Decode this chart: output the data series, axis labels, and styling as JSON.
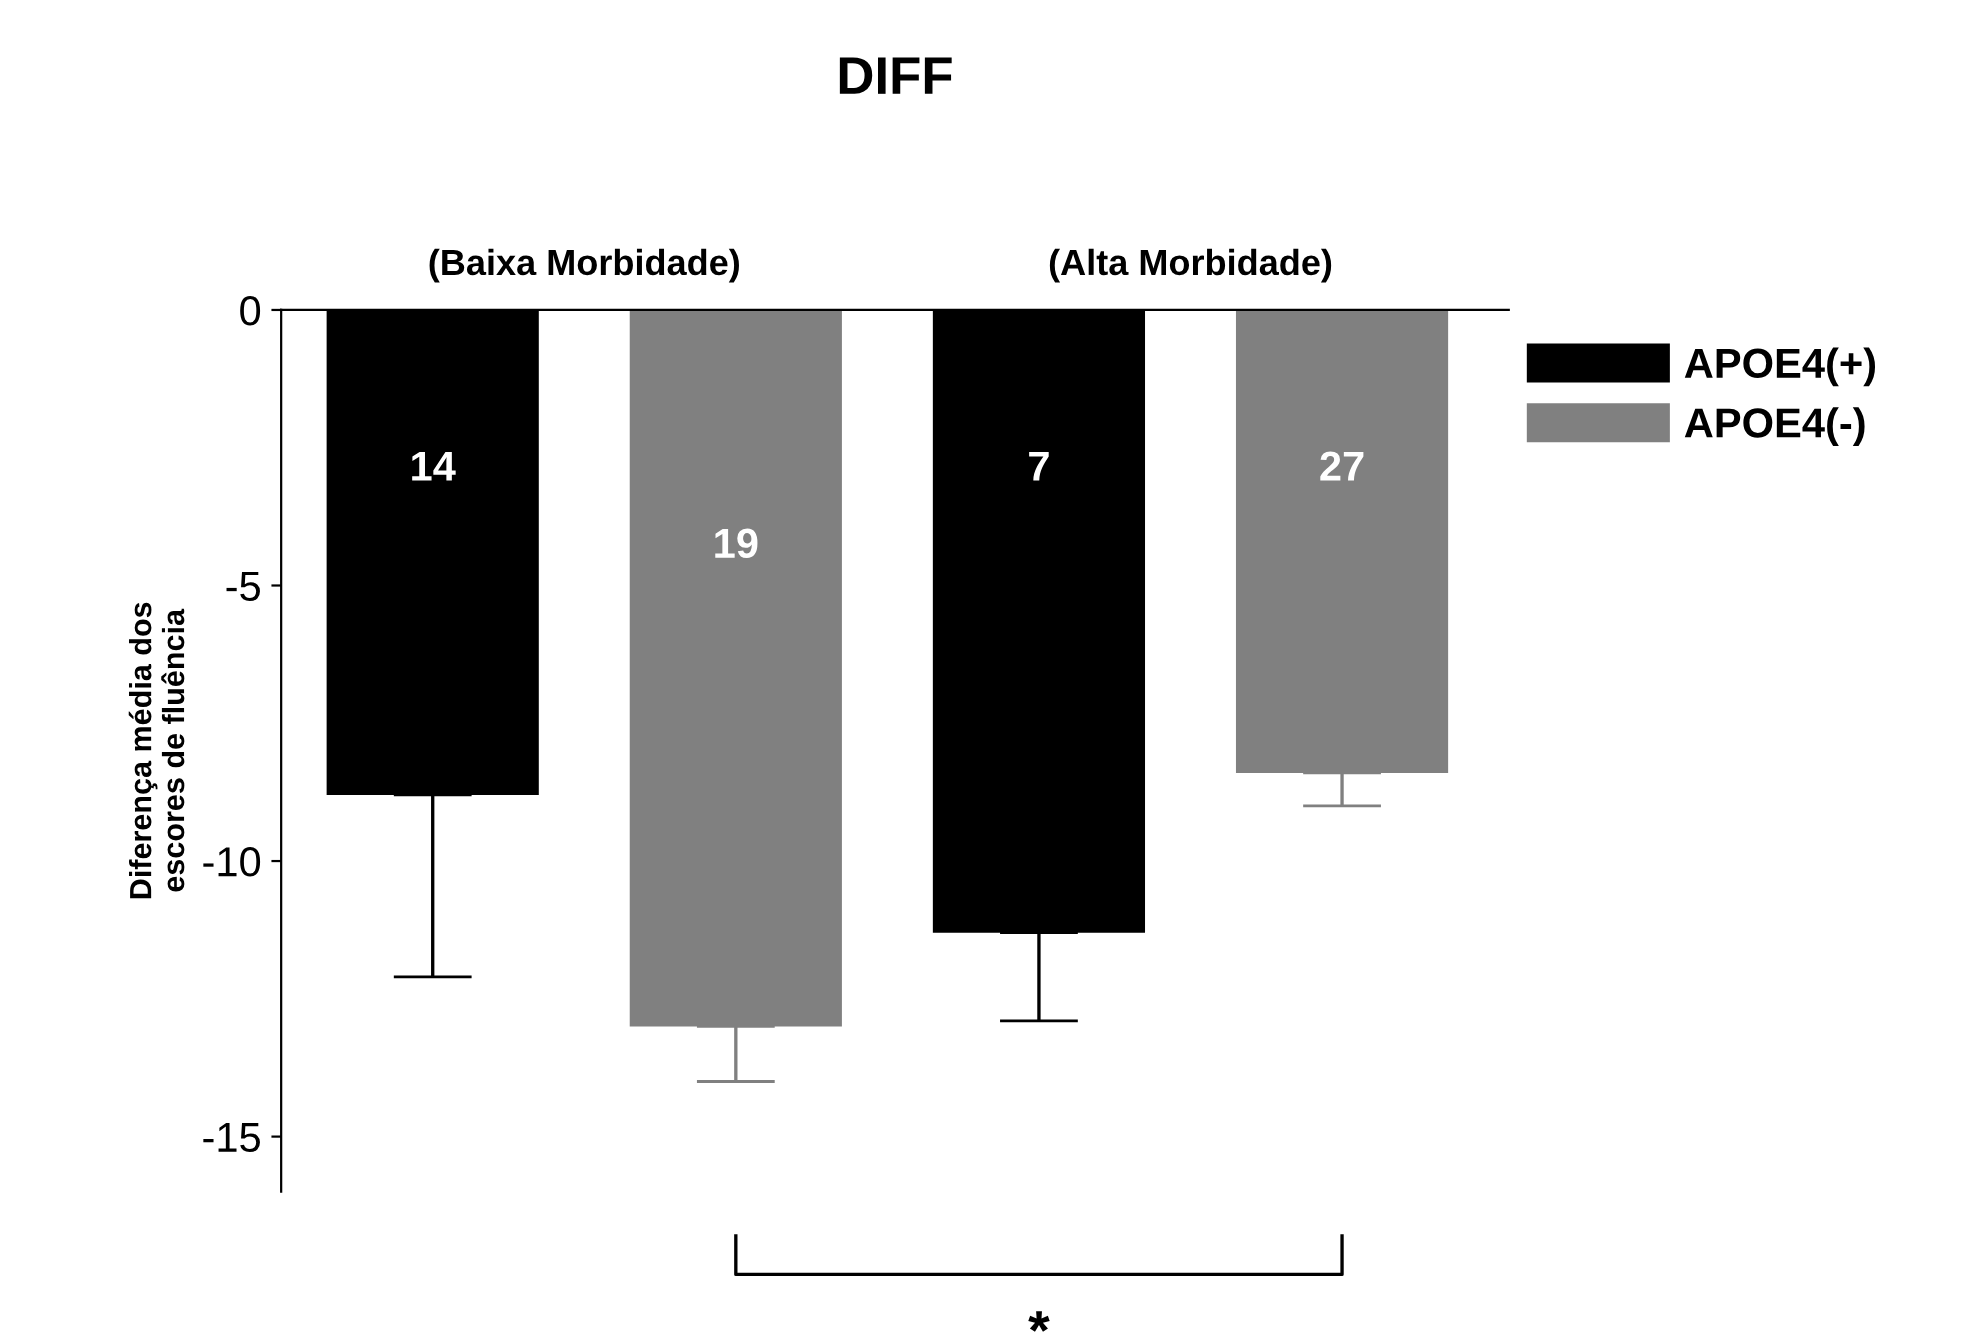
{
  "chart_data": {
    "type": "bar",
    "title": "DIFF",
    "ylabel": "Diferença média dos\nescores de fluência",
    "categories": [
      null,
      null,
      null,
      null
    ],
    "series": [
      {
        "name": "APOE4(+)",
        "color": "#000000",
        "values": [
          -8.8,
          null,
          -11.3,
          null
        ],
        "errors": [
          [
            -12.1,
            -8.8
          ],
          null,
          [
            -12.9,
            -11.3
          ],
          null
        ]
      },
      {
        "name": "APOE4(-)",
        "color": "#808080",
        "values": [
          null,
          -13.0,
          null,
          -8.4
        ],
        "errors": [
          null,
          [
            -14.0,
            -13.0
          ],
          null,
          [
            -9.0,
            -8.4
          ]
        ]
      }
    ],
    "ylim": [
      -16,
      0
    ],
    "yticks": [
      {
        "value": -15,
        "label": "-15"
      },
      {
        "value": -10,
        "label": "-10"
      },
      {
        "value": -5,
        "label": "-5"
      },
      0
    ],
    "annotations": [
      "(Baixa Morbidade)",
      "(Alta Morbidade)",
      "*",
      "14",
      "19",
      "7",
      "27"
    ],
    "legend": "top right",
    "grid": false
  }
}
